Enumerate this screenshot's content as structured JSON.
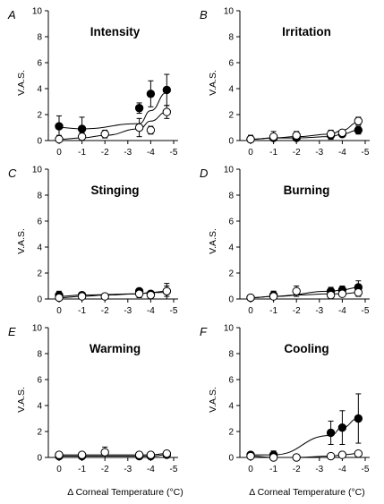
{
  "figure": {
    "xlabel": "Δ Corneal Temperature (°C)"
  },
  "style": {
    "filled_color": "#000000",
    "open_fill": "#ffffff",
    "axis_color": "#000000"
  },
  "chart_data": [
    {
      "type": "scatter",
      "panel": "A",
      "title": "Intensity",
      "ylabel": "V.A.S.",
      "xlim": [
        0,
        -5
      ],
      "ylim": [
        0,
        10
      ],
      "xticks": [
        "0",
        "-1",
        "-2",
        "-3",
        "-4",
        "-5"
      ],
      "yticks": [
        "0",
        "2",
        "4",
        "6",
        "8",
        "10"
      ],
      "series": [
        {
          "marker": "filled",
          "x": [
            0,
            -1,
            -3.5,
            -4,
            -4.7
          ],
          "y": [
            1.1,
            0.9,
            2.5,
            3.6,
            3.9
          ],
          "err": [
            0.8,
            0.9,
            0.4,
            1.0,
            1.2
          ],
          "fit": [
            1.0,
            0.9,
            1.3,
            2.3,
            3.7
          ]
        },
        {
          "marker": "open",
          "x": [
            0,
            -1,
            -2,
            -3.5,
            -4,
            -4.7
          ],
          "y": [
            0.1,
            0.3,
            0.5,
            1.0,
            0.8,
            2.2
          ],
          "err": [
            0.3,
            0.3,
            0.3,
            0.7,
            0.3,
            0.5
          ],
          "fit": [
            0.1,
            0.2,
            0.4,
            0.9,
            1.5,
            2.2
          ]
        }
      ]
    },
    {
      "type": "scatter",
      "panel": "B",
      "title": "Irritation",
      "ylabel": "V.A.S.",
      "xlim": [
        0,
        -5
      ],
      "ylim": [
        0,
        10
      ],
      "xticks": [
        "0",
        "-1",
        "-2",
        "-3",
        "-4",
        "-5"
      ],
      "yticks": [
        "0",
        "2",
        "4",
        "6",
        "8",
        "10"
      ],
      "series": [
        {
          "marker": "filled",
          "x": [
            0,
            -1,
            -2,
            -3.5,
            -4,
            -4.7
          ],
          "y": [
            0.1,
            0.2,
            0.2,
            0.4,
            0.5,
            0.8
          ],
          "err": [
            0.3,
            0.3,
            0.3,
            0.3,
            0.2,
            0.3
          ],
          "fit": [
            0.1,
            0.2,
            0.2,
            0.3,
            0.5,
            0.8
          ]
        },
        {
          "marker": "open",
          "x": [
            0,
            -1,
            -2,
            -3.5,
            -4,
            -4.7
          ],
          "y": [
            0.1,
            0.3,
            0.4,
            0.5,
            0.6,
            1.5
          ],
          "err": [
            0.3,
            0.4,
            0.3,
            0.3,
            0.2,
            0.3
          ],
          "fit": [
            0.1,
            0.2,
            0.3,
            0.5,
            0.8,
            1.4
          ]
        }
      ]
    },
    {
      "type": "scatter",
      "panel": "C",
      "title": "Stinging",
      "ylabel": "V.A.S.",
      "xlim": [
        0,
        -5
      ],
      "ylim": [
        0,
        10
      ],
      "xticks": [
        "0",
        "-1",
        "-2",
        "-3",
        "-4",
        "-5"
      ],
      "yticks": [
        "0",
        "2",
        "4",
        "6",
        "8",
        "10"
      ],
      "series": [
        {
          "marker": "filled",
          "x": [
            0,
            -1,
            -3.5,
            -4,
            -4.7
          ],
          "y": [
            0.3,
            0.3,
            0.6,
            0.4,
            0.6
          ],
          "err": [
            0.3,
            0.2,
            0.2,
            0.2,
            0.4
          ],
          "fit": [
            0.2,
            0.3,
            0.4,
            0.5,
            0.6
          ]
        },
        {
          "marker": "open",
          "x": [
            0,
            -1,
            -2,
            -3.5,
            -4,
            -4.7
          ],
          "y": [
            0.1,
            0.2,
            0.2,
            0.4,
            0.3,
            0.6
          ],
          "err": [
            0.2,
            0.2,
            0.2,
            0.3,
            0.2,
            0.6
          ],
          "fit": [
            0.1,
            0.2,
            0.3,
            0.4,
            0.5,
            0.5
          ]
        }
      ]
    },
    {
      "type": "scatter",
      "panel": "D",
      "title": "Burning",
      "ylabel": "V.A.S.",
      "xlim": [
        0,
        -5
      ],
      "ylim": [
        0,
        10
      ],
      "xticks": [
        "0",
        "-1",
        "-2",
        "-3",
        "-4",
        "-5"
      ],
      "yticks": [
        "0",
        "2",
        "4",
        "6",
        "8",
        "10"
      ],
      "series": [
        {
          "marker": "filled",
          "x": [
            0,
            -1,
            -3.5,
            -4,
            -4.7
          ],
          "y": [
            0.1,
            0.3,
            0.6,
            0.7,
            0.9
          ],
          "err": [
            0.2,
            0.3,
            0.3,
            0.3,
            0.5
          ],
          "fit": [
            0.1,
            0.2,
            0.6,
            0.7,
            0.9
          ]
        },
        {
          "marker": "open",
          "x": [
            0,
            -1,
            -2,
            -3.5,
            -4,
            -4.7
          ],
          "y": [
            0.1,
            0.2,
            0.6,
            0.3,
            0.4,
            0.5
          ],
          "err": [
            0.2,
            0.4,
            0.4,
            0.2,
            0.2,
            0.3
          ],
          "fit": [
            0.1,
            0.2,
            0.3,
            0.4,
            0.4,
            0.5
          ]
        }
      ]
    },
    {
      "type": "scatter",
      "panel": "E",
      "title": "Warming",
      "ylabel": "V.A.S.",
      "xlim": [
        0,
        -5
      ],
      "ylim": [
        0,
        10
      ],
      "xticks": [
        "0",
        "-1",
        "-2",
        "-3",
        "-4",
        "-5"
      ],
      "yticks": [
        "0",
        "2",
        "4",
        "6",
        "8",
        "10"
      ],
      "series": [
        {
          "marker": "filled",
          "x": [
            0,
            -1,
            -3.5,
            -4,
            -4.7
          ],
          "y": [
            0.1,
            0.1,
            0.1,
            0.1,
            0.2
          ],
          "err": [
            0.2,
            0.2,
            0.1,
            0.1,
            0.1
          ],
          "fit": [
            0.1,
            0.1,
            0.1,
            0.1,
            0.2
          ]
        },
        {
          "marker": "open",
          "x": [
            0,
            -1,
            -2,
            -3.5,
            -4,
            -4.7
          ],
          "y": [
            0.2,
            0.2,
            0.4,
            0.2,
            0.2,
            0.3
          ],
          "err": [
            0.2,
            0.2,
            0.4,
            0.2,
            0.1,
            0.2
          ],
          "fit": [
            0.2,
            0.2,
            0.2,
            0.2,
            0.2,
            0.3
          ]
        }
      ]
    },
    {
      "type": "scatter",
      "panel": "F",
      "title": "Cooling",
      "ylabel": "V.A.S.",
      "xlim": [
        0,
        -5
      ],
      "ylim": [
        0,
        10
      ],
      "xticks": [
        "0",
        "-1",
        "-2",
        "-3",
        "-4",
        "-5"
      ],
      "yticks": [
        "0",
        "2",
        "4",
        "6",
        "8",
        "10"
      ],
      "series": [
        {
          "marker": "filled",
          "x": [
            0,
            -1,
            -3.5,
            -4,
            -4.7
          ],
          "y": [
            0.2,
            0.2,
            1.9,
            2.3,
            3.0
          ],
          "err": [
            0.2,
            0.3,
            0.9,
            1.3,
            1.9
          ],
          "fit": [
            0.2,
            0.2,
            1.7,
            2.3,
            3.0
          ]
        },
        {
          "marker": "open",
          "x": [
            0,
            -1,
            -2,
            -3.5,
            -4,
            -4.7
          ],
          "y": [
            0.1,
            0.0,
            0.0,
            0.1,
            0.2,
            0.3
          ],
          "err": [
            0.1,
            0.1,
            0.1,
            0.1,
            0.1,
            0.1
          ],
          "fit": [
            0.1,
            0.0,
            0.0,
            0.1,
            0.2,
            0.3
          ]
        }
      ]
    }
  ]
}
